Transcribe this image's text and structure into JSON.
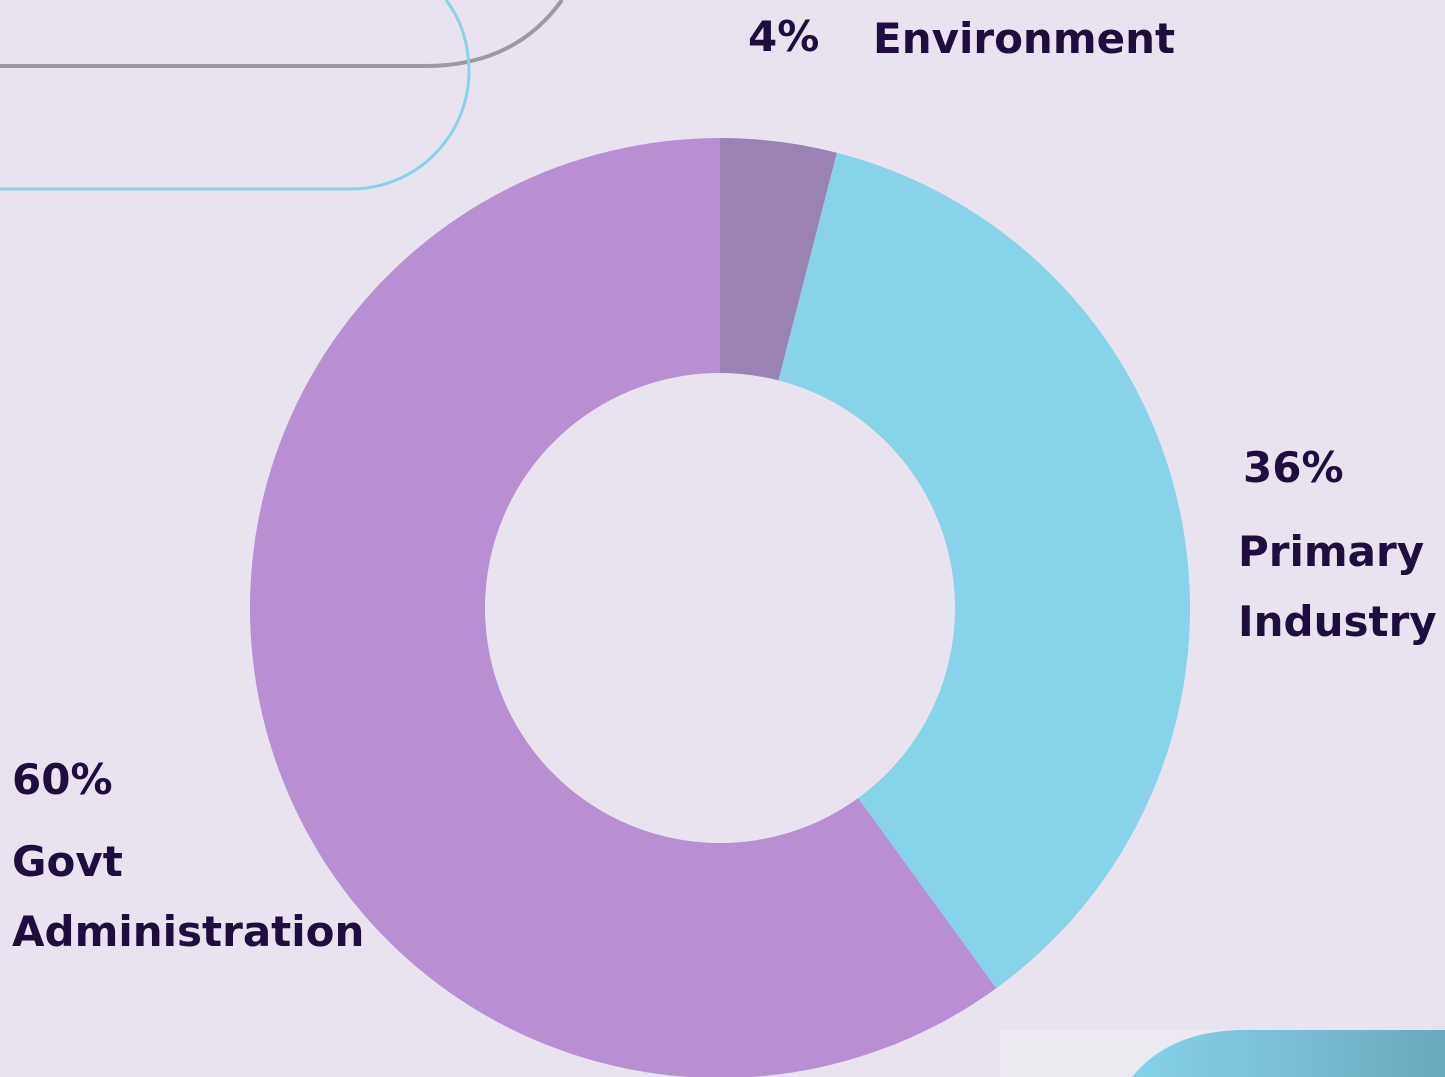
{
  "chart_data": {
    "type": "donut",
    "categories": [
      "Environment",
      "Primary Industry",
      "Govt Administration"
    ],
    "values": [
      4,
      36,
      60
    ],
    "value_labels": [
      "4%",
      "36%",
      "60%"
    ],
    "colors": [
      "#9a82b4",
      "#86d3ea",
      "#b88fd3"
    ]
  }
}
